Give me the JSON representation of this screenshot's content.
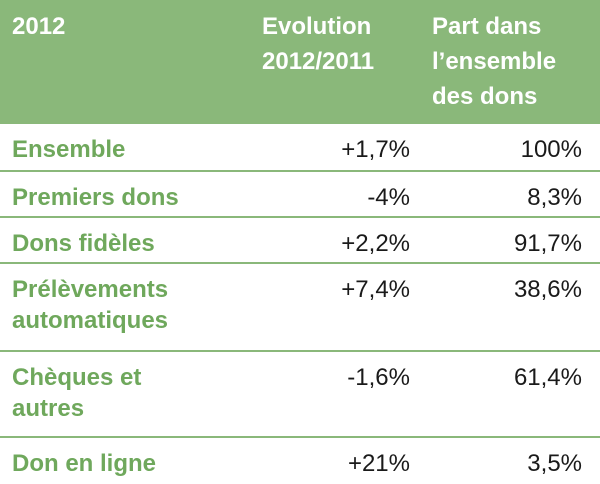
{
  "header": {
    "col1": "2012",
    "col2_line1": "Evolution",
    "col2_line2": "2012/2011",
    "col3_line1": "Part dans",
    "col3_line2": "l’ensemble",
    "col3_line3": "des dons"
  },
  "rows": [
    {
      "label_line1": "Ensemble",
      "label_line2": "",
      "evolution": "+1,7%",
      "part": "100%"
    },
    {
      "label_line1": "Premiers dons",
      "label_line2": "",
      "evolution": "-4%",
      "part": "8,3%"
    },
    {
      "label_line1": "Dons fidèles",
      "label_line2": "",
      "evolution": "+2,2%",
      "part": "91,7%"
    },
    {
      "label_line1": "Prélèvements",
      "label_line2": "automatiques",
      "evolution": "+7,4%",
      "part": "38,6%"
    },
    {
      "label_line1": "Chèques et",
      "label_line2": "autres",
      "evolution": "-1,6%",
      "part": "61,4%"
    },
    {
      "label_line1": "Don en ligne",
      "label_line2": "",
      "evolution": "+21%",
      "part": "3,5%"
    }
  ],
  "colors": {
    "header_bg": "#8ab87a",
    "label_text": "#6fa85c",
    "value_text": "#1a1a1a"
  }
}
